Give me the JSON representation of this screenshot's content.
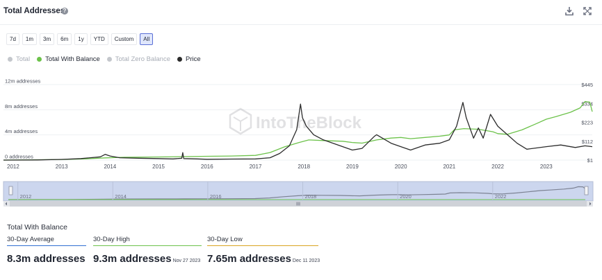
{
  "header": {
    "title": "Total Addresses",
    "help_glyph": "?",
    "download_icon": "download-icon",
    "expand_icon": "expand-icon"
  },
  "range_buttons": [
    {
      "label": "7d",
      "active": false
    },
    {
      "label": "1m",
      "active": false
    },
    {
      "label": "3m",
      "active": false
    },
    {
      "label": "6m",
      "active": false
    },
    {
      "label": "1y",
      "active": false
    },
    {
      "label": "YTD",
      "active": false
    },
    {
      "label": "Custom",
      "active": false
    },
    {
      "label": "All",
      "active": true
    }
  ],
  "legend": [
    {
      "label": "Total",
      "color": "#c4c7cc",
      "enabled": false
    },
    {
      "label": "Total With Balance",
      "color": "#6cc24a",
      "enabled": true
    },
    {
      "label": "Total Zero Balance",
      "color": "#c4c7cc",
      "enabled": false
    },
    {
      "label": "Price",
      "color": "#2b2b2b",
      "enabled": true
    }
  ],
  "watermark": "IntoTheBlock",
  "chart_data": {
    "type": "line",
    "x_ticks": [
      "2012",
      "2013",
      "2014",
      "2015",
      "2016",
      "2017",
      "2018",
      "2019",
      "2020",
      "2021",
      "2022",
      "2023"
    ],
    "xlim": [
      2011.8,
      2023.95
    ],
    "left_axis": {
      "ticks": [
        "0 addresses",
        "4m addresses",
        "8m addresses",
        "12m addresses"
      ],
      "values": [
        0,
        4,
        8,
        12
      ],
      "unit": "m addresses",
      "range": [
        0,
        12
      ]
    },
    "right_axis": {
      "ticks": [
        "$1",
        "$112",
        "$223",
        "$334",
        "$445"
      ],
      "values": [
        1,
        112,
        223,
        334,
        445
      ],
      "range": [
        1,
        445
      ]
    },
    "series": [
      {
        "name": "Total With Balance",
        "axis": "left",
        "color": "#6cc24a",
        "x": [
          2011.8,
          2012.5,
          2013.0,
          2013.5,
          2013.9,
          2014.3,
          2015.0,
          2015.5,
          2016.0,
          2016.5,
          2017.0,
          2017.3,
          2017.6,
          2017.9,
          2018.1,
          2018.4,
          2018.8,
          2019.0,
          2019.2,
          2019.5,
          2019.8,
          2020.0,
          2020.2,
          2020.5,
          2020.8,
          2021.0,
          2021.1,
          2021.3,
          2021.6,
          2021.9,
          2022.0,
          2022.2,
          2022.5,
          2022.8,
          2023.0,
          2023.2,
          2023.5,
          2023.7,
          2023.8,
          2023.9,
          2023.95
        ],
        "y": [
          0.0,
          0.05,
          0.1,
          0.2,
          0.35,
          0.45,
          0.5,
          0.55,
          0.6,
          0.65,
          0.75,
          1.2,
          2.1,
          2.8,
          3.2,
          3.1,
          3.0,
          2.8,
          2.7,
          3.2,
          3.5,
          3.6,
          3.4,
          3.6,
          3.8,
          4.0,
          4.8,
          5.0,
          4.9,
          4.5,
          4.2,
          4.1,
          4.8,
          5.8,
          6.5,
          6.9,
          7.6,
          8.3,
          9.3,
          9.2,
          7.7
        ]
      },
      {
        "name": "Price",
        "axis": "right",
        "color": "#2b2b2b",
        "x": [
          2011.8,
          2012.5,
          2013.0,
          2013.4,
          2013.8,
          2013.9,
          2014.0,
          2014.2,
          2014.6,
          2015.0,
          2015.3,
          2015.48,
          2015.5,
          2015.52,
          2015.8,
          2016.0,
          2016.5,
          2017.0,
          2017.3,
          2017.5,
          2017.7,
          2017.85,
          2017.93,
          2017.97,
          2018.05,
          2018.2,
          2018.4,
          2018.8,
          2019.0,
          2019.2,
          2019.45,
          2019.5,
          2019.8,
          2020.0,
          2020.2,
          2020.5,
          2020.8,
          2021.0,
          2021.15,
          2021.28,
          2021.35,
          2021.5,
          2021.6,
          2021.7,
          2021.85,
          2022.0,
          2022.2,
          2022.4,
          2022.6,
          2023.0,
          2023.3,
          2023.6,
          2023.8,
          2023.95
        ],
        "y": [
          1,
          2,
          5,
          10,
          20,
          35,
          25,
          15,
          12,
          10,
          8,
          12,
          45,
          10,
          8,
          6,
          7,
          8,
          15,
          40,
          85,
          180,
          330,
          250,
          200,
          150,
          120,
          80,
          60,
          70,
          140,
          150,
          100,
          80,
          60,
          90,
          100,
          120,
          200,
          340,
          250,
          130,
          190,
          130,
          270,
          200,
          150,
          100,
          65,
          80,
          90,
          75,
          85,
          80
        ]
      }
    ],
    "navigator": {
      "x_ticks": [
        "2012",
        "2014",
        "2016",
        "2018",
        "2020",
        "2022"
      ]
    }
  },
  "stats": {
    "section_title": "Total With Balance",
    "items": [
      {
        "label": "30-Day Average",
        "value": "8.3m addresses",
        "date": "",
        "color": "#2f6fd1"
      },
      {
        "label": "30-Day High",
        "value": "9.3m addresses",
        "date": "Nov 27 2023",
        "color": "#6cc24a"
      },
      {
        "label": "30-Day Low",
        "value": "7.65m addresses",
        "date": "Dec 11 2023",
        "color": "#d9a420"
      }
    ]
  }
}
